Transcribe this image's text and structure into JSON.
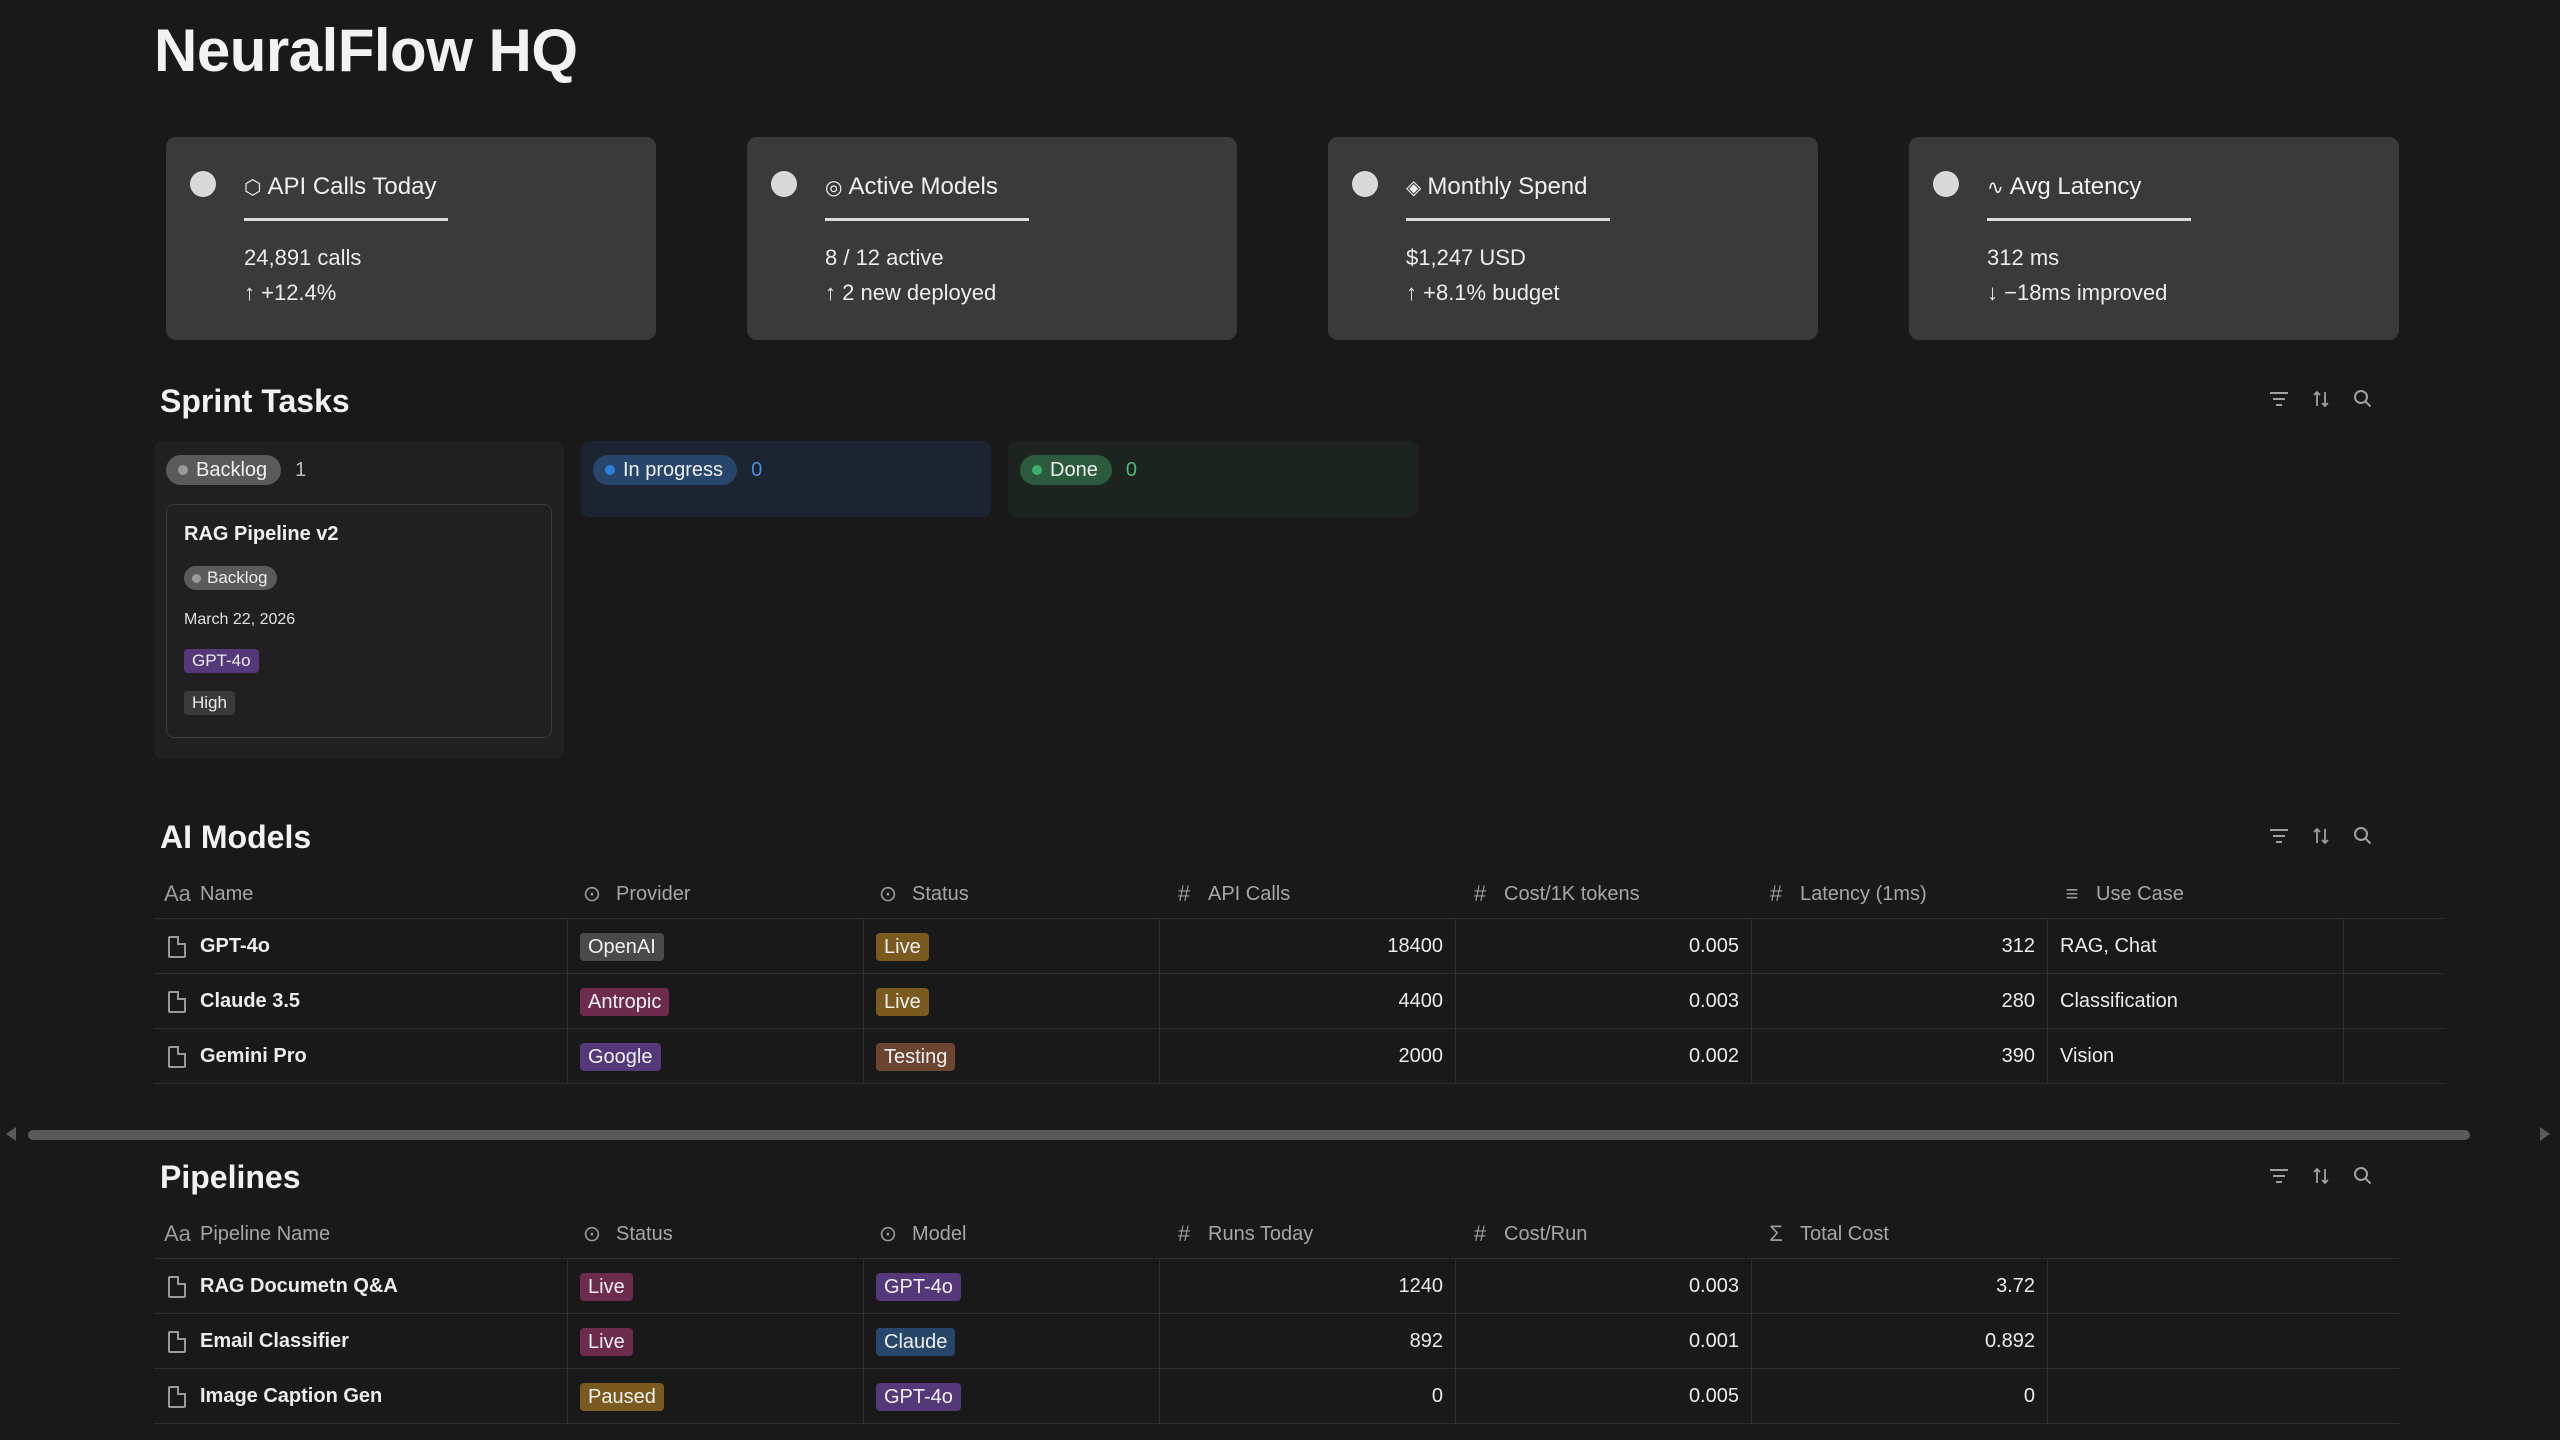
{
  "page": {
    "title": "NeuralFlow HQ"
  },
  "stats": [
    {
      "glyph": "⬡",
      "title": "API Calls Today",
      "line1": "24,891 calls",
      "line2": "↑ +12.4%"
    },
    {
      "glyph": "◎",
      "title": "Active Models",
      "line1": "8 / 12 active",
      "line2": "↑ 2 new deployed"
    },
    {
      "glyph": "◈",
      "title": "Monthly Spend",
      "line1": "$1,247 USD",
      "line2": "↑ +8.1% budget"
    },
    {
      "glyph": "∿",
      "title": "Avg Latency",
      "line1": "312 ms",
      "line2": "↓ −18ms improved"
    }
  ],
  "sprint": {
    "title": "Sprint Tasks",
    "columns": [
      {
        "label": "Backlog",
        "count": "1",
        "color": "#5a5a5a",
        "dot": "#9a9a9a",
        "count_color": "#bdbdbd"
      },
      {
        "label": "In progress",
        "count": "0",
        "color": "#28456c",
        "dot": "#2f7fd9",
        "count_color": "#4a8ee0"
      },
      {
        "label": "Done",
        "count": "0",
        "color": "#2b5a3c",
        "dot": "#3fae6a",
        "count_color": "#4cb874"
      }
    ],
    "task": {
      "name": "RAG Pipeline v2",
      "status": "Backlog",
      "date": "March 22, 2026",
      "model": "GPT-4o",
      "priority": "High"
    }
  },
  "models": {
    "title": "AI Models",
    "headers": [
      "Name",
      "Provider",
      "Status",
      "API Calls",
      "Cost/1K tokens",
      "Latency (1ms)",
      "Use Case"
    ],
    "header_icons": [
      "Aa",
      "⊙",
      "⊙",
      "#",
      "#",
      "#",
      "≡"
    ],
    "rows": [
      {
        "name": "GPT-4o",
        "provider": "OpenAI",
        "provider_color": "#4a4a4a",
        "status": "Live",
        "status_color": "#7a5a1f",
        "calls": "18400",
        "cost": "0.005",
        "latency": "312",
        "use_case": "RAG, Chat"
      },
      {
        "name": "Claude 3.5",
        "provider": "Antropic",
        "provider_color": "#6e2c4c",
        "status": "Live",
        "status_color": "#7a5a1f",
        "calls": "4400",
        "cost": "0.003",
        "latency": "280",
        "use_case": "Classification"
      },
      {
        "name": "Gemini Pro",
        "provider": "Google",
        "provider_color": "#54387a",
        "status": "Testing",
        "status_color": "#6b4530",
        "calls": "2000",
        "cost": "0.002",
        "latency": "390",
        "use_case": "Vision"
      }
    ]
  },
  "pipelines": {
    "title": "Pipelines",
    "headers": [
      "Pipeline Name",
      "Status",
      "Model",
      "Runs Today",
      "Cost/Run",
      "Total Cost"
    ],
    "header_icons": [
      "Aa",
      "⊙",
      "⊙",
      "#",
      "#",
      "Σ"
    ],
    "rows": [
      {
        "name": "RAG Documetn Q&A",
        "status": "Live",
        "status_color": "#6e2c4c",
        "model": "GPT-4o",
        "model_color": "#54387a",
        "runs": "1240",
        "cost": "0.003",
        "total": "3.72"
      },
      {
        "name": "Email Classifier",
        "status": "Live",
        "status_color": "#6e2c4c",
        "model": "Claude",
        "model_color": "#28456c",
        "runs": "892",
        "cost": "0.001",
        "total": "0.892"
      },
      {
        "name": "Image Caption Gen",
        "status": "Paused",
        "status_color": "#7a5a1f",
        "model": "GPT-4o",
        "model_color": "#54387a",
        "runs": "0",
        "cost": "0.005",
        "total": "0"
      }
    ]
  },
  "toolbar_icons": [
    "filter-icon",
    "sort-icon",
    "search-icon"
  ],
  "colors": {
    "background": "#191919",
    "card": "#3a3a3a",
    "text": "#e8e8e8"
  }
}
